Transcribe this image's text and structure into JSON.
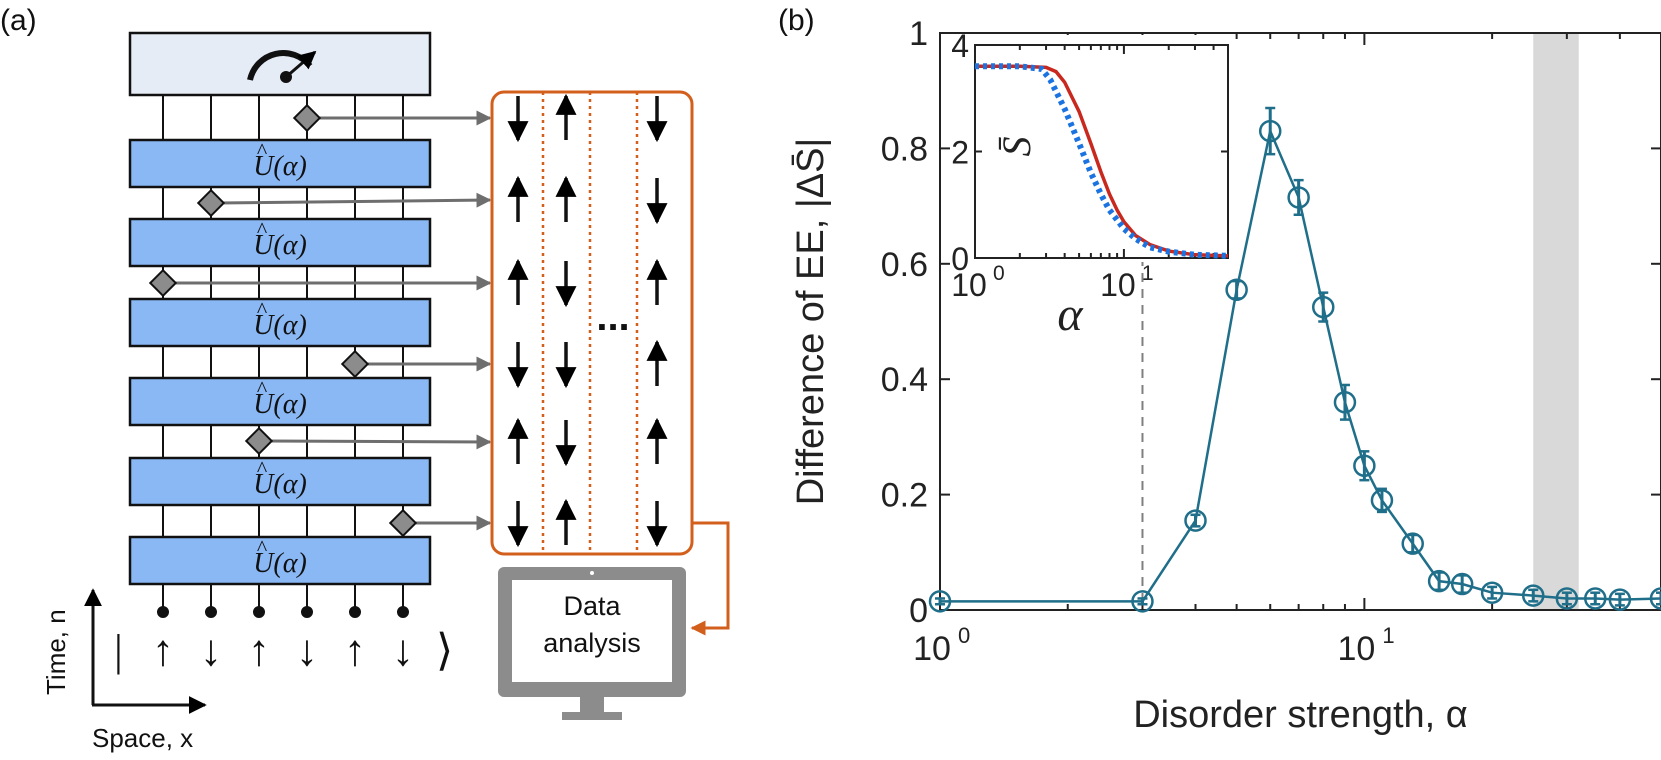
{
  "panel_a": {
    "label": "(a)",
    "gate_label": "U(α)",
    "gate_hat": "^",
    "data_box_ellipsis": "...",
    "computer_label_line1": "Data",
    "computer_label_line2": "analysis",
    "time_axis_label": "Time, n",
    "space_axis_label": "Space, x",
    "initial_state": {
      "open": "|",
      "spins": [
        "↑",
        "↓",
        "↑",
        "↓",
        "↑",
        "↓"
      ],
      "close": "⟩"
    },
    "measurement_record": [
      [
        "down",
        "up",
        "down"
      ],
      [
        "up",
        "up",
        "down"
      ],
      [
        "up",
        "down",
        "up"
      ],
      [
        "down",
        "down",
        "up"
      ],
      [
        "up",
        "down",
        "up"
      ],
      [
        "down",
        "up",
        "down"
      ]
    ],
    "colors": {
      "gate_fill": "#8ab8f5",
      "meter_fill": "#e6ecf6",
      "accent": "#d35f1c",
      "computer": "#8c8c8c"
    }
  },
  "panel_b": {
    "label": "(b)"
  },
  "chart_data": [
    {
      "type": "line",
      "title": "",
      "xlabel": "Disorder strength, α",
      "ylabel": "Difference of EE, |ΔS̄|",
      "xscale": "log",
      "xlim": [
        1,
        50
      ],
      "ylim": [
        0,
        1
      ],
      "x_ticks": [
        "10^0",
        "10^1"
      ],
      "y_ticks": [
        "0",
        "0.2",
        "0.4",
        "0.6",
        "0.8",
        "1"
      ],
      "grid": false,
      "series": [
        {
          "name": "",
          "color": "#1f6e8a",
          "marker": "open-circle",
          "x": [
            1,
            3,
            4,
            5,
            6,
            7,
            8,
            9,
            10,
            11,
            13,
            15,
            17,
            20,
            25,
            30,
            35,
            40,
            50
          ],
          "y": [
            0.015,
            0.015,
            0.155,
            0.555,
            0.83,
            0.715,
            0.525,
            0.36,
            0.25,
            0.19,
            0.115,
            0.05,
            0.045,
            0.03,
            0.025,
            0.02,
            0.02,
            0.018,
            0.02
          ],
          "error": [
            0.005,
            0.005,
            0.01,
            0.015,
            0.04,
            0.03,
            0.025,
            0.03,
            0.025,
            0.02,
            0.015,
            0.015,
            0.015,
            0.01,
            0.01,
            0.01,
            0.01,
            0.01,
            0.01
          ]
        }
      ],
      "annotations": {
        "vertical_dashed_line_x": 3,
        "shaded_band_x": [
          25,
          32
        ]
      }
    },
    {
      "type": "line",
      "title": "",
      "xlabel": "α",
      "ylabel": "S̄",
      "xscale": "log",
      "xlim": [
        1,
        50
      ],
      "ylim": [
        0,
        4
      ],
      "x_ticks": [
        "10^0",
        "10^1"
      ],
      "y_ticks": [
        "0",
        "2",
        "4"
      ],
      "series": [
        {
          "name": "",
          "color": "#c8281e",
          "style": "solid",
          "x": [
            1,
            2,
            3,
            3.5,
            4,
            5,
            6,
            7,
            8,
            9,
            10,
            12,
            15,
            20,
            30,
            50
          ],
          "y": [
            3.6,
            3.6,
            3.58,
            3.5,
            3.3,
            2.75,
            2.15,
            1.62,
            1.2,
            0.9,
            0.68,
            0.42,
            0.25,
            0.13,
            0.06,
            0.04
          ]
        },
        {
          "name": "",
          "color": "#1a73e0",
          "style": "dotted",
          "x": [
            1,
            2,
            2.8,
            3.2,
            4,
            5,
            6,
            7,
            8,
            10,
            12,
            15,
            20,
            30,
            50
          ],
          "y": [
            3.6,
            3.6,
            3.55,
            3.35,
            2.8,
            2.15,
            1.6,
            1.2,
            0.9,
            0.55,
            0.36,
            0.2,
            0.12,
            0.06,
            0.04
          ]
        }
      ]
    }
  ]
}
